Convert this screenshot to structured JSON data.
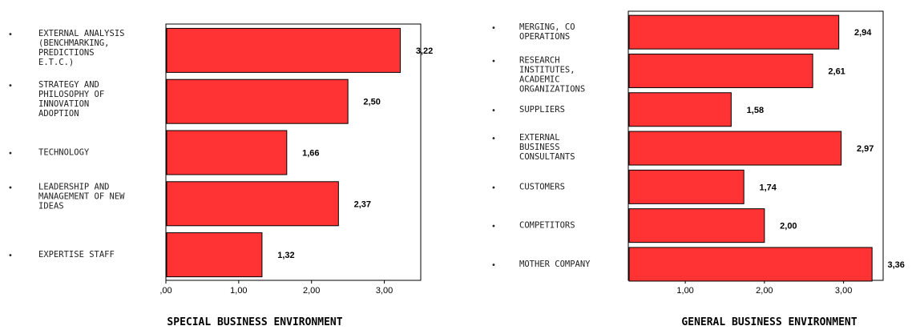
{
  "chart_data": [
    {
      "type": "bar",
      "orientation": "horizontal",
      "title": "SPECIAL BUSINESS ENVIRONMENT",
      "categories": [
        [
          "EXTERNAL ANALYSIS",
          "(BENCHMARKING,",
          "PREDICTIONS",
          "E.T.C.)"
        ],
        [
          "STRATEGY AND",
          "PHILOSOPHY OF",
          "INNOVATION",
          "ADOPTION"
        ],
        [
          "TECHNOLOGY"
        ],
        [
          "LEADERSHIP AND",
          "MANAGEMENT OF NEW",
          "IDEAS"
        ],
        [
          "EXPERTISE STAFF"
        ]
      ],
      "values": [
        3.22,
        2.5,
        1.66,
        2.37,
        1.32
      ],
      "value_labels": [
        "3,22",
        "2,50",
        "1,66",
        "2,37",
        "1,32"
      ],
      "xlim": [
        0,
        3.5
      ],
      "xticks": [
        0,
        1,
        2,
        3
      ],
      "xtick_labels": [
        ",00",
        "1,00",
        "2,00",
        "3,00"
      ],
      "bar_color": "#ff3333",
      "grid": false
    },
    {
      "type": "bar",
      "orientation": "horizontal",
      "title": "GENERAL BUSINESS ENVIRONMENT",
      "categories": [
        [
          "MERGING, CO",
          "OPERATIONS"
        ],
        [
          "RESEARCH",
          "INSTITUTES,",
          "ACADEMIC",
          "ORGANIZATIONS"
        ],
        [
          "SUPPLIERS"
        ],
        [
          "EXTERNAL",
          "BUSINESS",
          "CONSULTANTS"
        ],
        [
          "CUSTOMERS"
        ],
        [
          "COMPETITORS"
        ],
        [
          "MOTHER COMPANY"
        ]
      ],
      "values": [
        2.94,
        2.61,
        1.58,
        2.97,
        1.74,
        2.0,
        3.36
      ],
      "value_labels": [
        "2,94",
        "2,61",
        "1,58",
        "2,97",
        "1,74",
        "2,00",
        "3,36"
      ],
      "xlim": [
        0.28,
        3.5
      ],
      "xticks": [
        1,
        2,
        3
      ],
      "xtick_labels": [
        "1,00",
        "2,00",
        "3,00"
      ],
      "bar_color": "#ff3333",
      "grid": false
    }
  ]
}
